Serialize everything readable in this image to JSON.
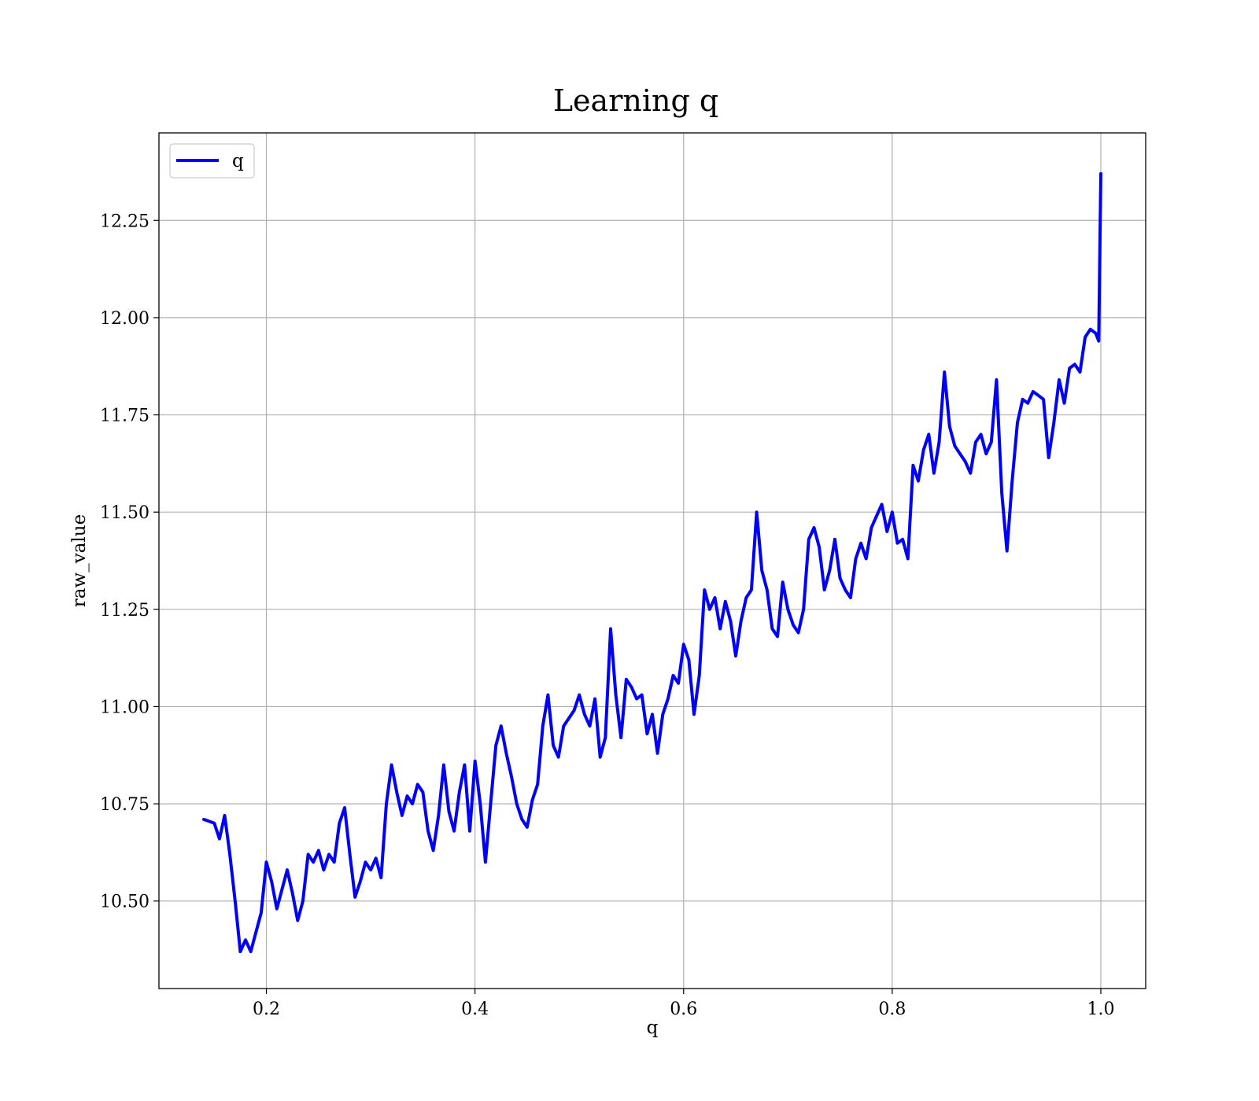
{
  "chart_data": {
    "type": "line",
    "title": "Learning q",
    "xlabel": "q",
    "ylabel": "raw_value",
    "xlim": [
      0.097,
      1.043
    ],
    "ylim": [
      10.275,
      12.475
    ],
    "xticks": [
      0.2,
      0.4,
      0.6,
      0.8,
      1.0
    ],
    "xtick_labels": [
      "0.2",
      "0.4",
      "0.6",
      "0.8",
      "1.0"
    ],
    "yticks": [
      10.5,
      10.75,
      11.0,
      11.25,
      11.5,
      11.75,
      12.0,
      12.25
    ],
    "ytick_labels": [
      "10.50",
      "10.75",
      "11.00",
      "11.25",
      "11.50",
      "11.75",
      "12.00",
      "12.25"
    ],
    "grid": true,
    "legend_position": "top-left",
    "series": [
      {
        "name": "q",
        "color": "#0000ff",
        "x": [
          0.14,
          0.15,
          0.155,
          0.16,
          0.165,
          0.17,
          0.175,
          0.18,
          0.185,
          0.19,
          0.195,
          0.2,
          0.205,
          0.21,
          0.215,
          0.22,
          0.225,
          0.23,
          0.235,
          0.24,
          0.245,
          0.25,
          0.255,
          0.26,
          0.265,
          0.27,
          0.275,
          0.28,
          0.285,
          0.29,
          0.295,
          0.3,
          0.305,
          0.31,
          0.315,
          0.32,
          0.325,
          0.33,
          0.335,
          0.34,
          0.345,
          0.35,
          0.355,
          0.36,
          0.365,
          0.37,
          0.375,
          0.38,
          0.385,
          0.39,
          0.395,
          0.4,
          0.405,
          0.41,
          0.415,
          0.42,
          0.425,
          0.43,
          0.435,
          0.44,
          0.445,
          0.45,
          0.455,
          0.46,
          0.465,
          0.47,
          0.475,
          0.48,
          0.485,
          0.49,
          0.495,
          0.5,
          0.505,
          0.51,
          0.515,
          0.52,
          0.525,
          0.53,
          0.535,
          0.54,
          0.545,
          0.55,
          0.555,
          0.56,
          0.565,
          0.57,
          0.575,
          0.58,
          0.585,
          0.59,
          0.595,
          0.6,
          0.605,
          0.61,
          0.615,
          0.62,
          0.625,
          0.63,
          0.635,
          0.64,
          0.645,
          0.65,
          0.655,
          0.66,
          0.665,
          0.67,
          0.675,
          0.68,
          0.685,
          0.69,
          0.695,
          0.7,
          0.705,
          0.71,
          0.715,
          0.72,
          0.725,
          0.73,
          0.735,
          0.74,
          0.745,
          0.75,
          0.755,
          0.76,
          0.765,
          0.77,
          0.775,
          0.78,
          0.785,
          0.79,
          0.795,
          0.8,
          0.805,
          0.81,
          0.815,
          0.82,
          0.825,
          0.83,
          0.835,
          0.84,
          0.845,
          0.85,
          0.855,
          0.86,
          0.865,
          0.87,
          0.875,
          0.88,
          0.885,
          0.89,
          0.895,
          0.9,
          0.905,
          0.91,
          0.915,
          0.92,
          0.925,
          0.93,
          0.935,
          0.94,
          0.945,
          0.95,
          0.955,
          0.96,
          0.965,
          0.97,
          0.975,
          0.98,
          0.985,
          0.99,
          0.995,
          0.998,
          1.0
        ],
        "y": [
          10.71,
          10.7,
          10.66,
          10.72,
          10.62,
          10.5,
          10.37,
          10.4,
          10.37,
          10.42,
          10.47,
          10.6,
          10.55,
          10.48,
          10.53,
          10.58,
          10.52,
          10.45,
          10.5,
          10.62,
          10.6,
          10.63,
          10.58,
          10.62,
          10.6,
          10.7,
          10.74,
          10.62,
          10.51,
          10.55,
          10.6,
          10.58,
          10.61,
          10.56,
          10.75,
          10.85,
          10.78,
          10.72,
          10.77,
          10.75,
          10.8,
          10.78,
          10.68,
          10.63,
          10.72,
          10.85,
          10.73,
          10.68,
          10.78,
          10.85,
          10.68,
          10.86,
          10.75,
          10.6,
          10.75,
          10.9,
          10.95,
          10.88,
          10.82,
          10.75,
          10.71,
          10.69,
          10.76,
          10.8,
          10.95,
          11.03,
          10.9,
          10.87,
          10.95,
          10.97,
          10.99,
          11.03,
          10.98,
          10.95,
          11.02,
          10.87,
          10.92,
          11.2,
          11.03,
          10.92,
          11.07,
          11.05,
          11.02,
          11.03,
          10.93,
          10.98,
          10.88,
          10.98,
          11.02,
          11.08,
          11.06,
          11.16,
          11.12,
          10.98,
          11.08,
          11.3,
          11.25,
          11.28,
          11.2,
          11.27,
          11.22,
          11.13,
          11.22,
          11.28,
          11.3,
          11.5,
          11.35,
          11.3,
          11.2,
          11.18,
          11.32,
          11.25,
          11.21,
          11.19,
          11.25,
          11.43,
          11.46,
          11.41,
          11.3,
          11.35,
          11.43,
          11.33,
          11.3,
          11.28,
          11.38,
          11.42,
          11.38,
          11.46,
          11.49,
          11.52,
          11.45,
          11.5,
          11.42,
          11.43,
          11.38,
          11.62,
          11.58,
          11.66,
          11.7,
          11.6,
          11.68,
          11.86,
          11.72,
          11.67,
          11.65,
          11.63,
          11.6,
          11.68,
          11.7,
          11.65,
          11.68,
          11.84,
          11.55,
          11.4,
          11.58,
          11.73,
          11.79,
          11.78,
          11.81,
          11.8,
          11.79,
          11.64,
          11.73,
          11.84,
          11.78,
          11.87,
          11.88,
          11.86,
          11.95,
          11.97,
          11.96,
          11.94,
          12.37
        ]
      }
    ]
  }
}
